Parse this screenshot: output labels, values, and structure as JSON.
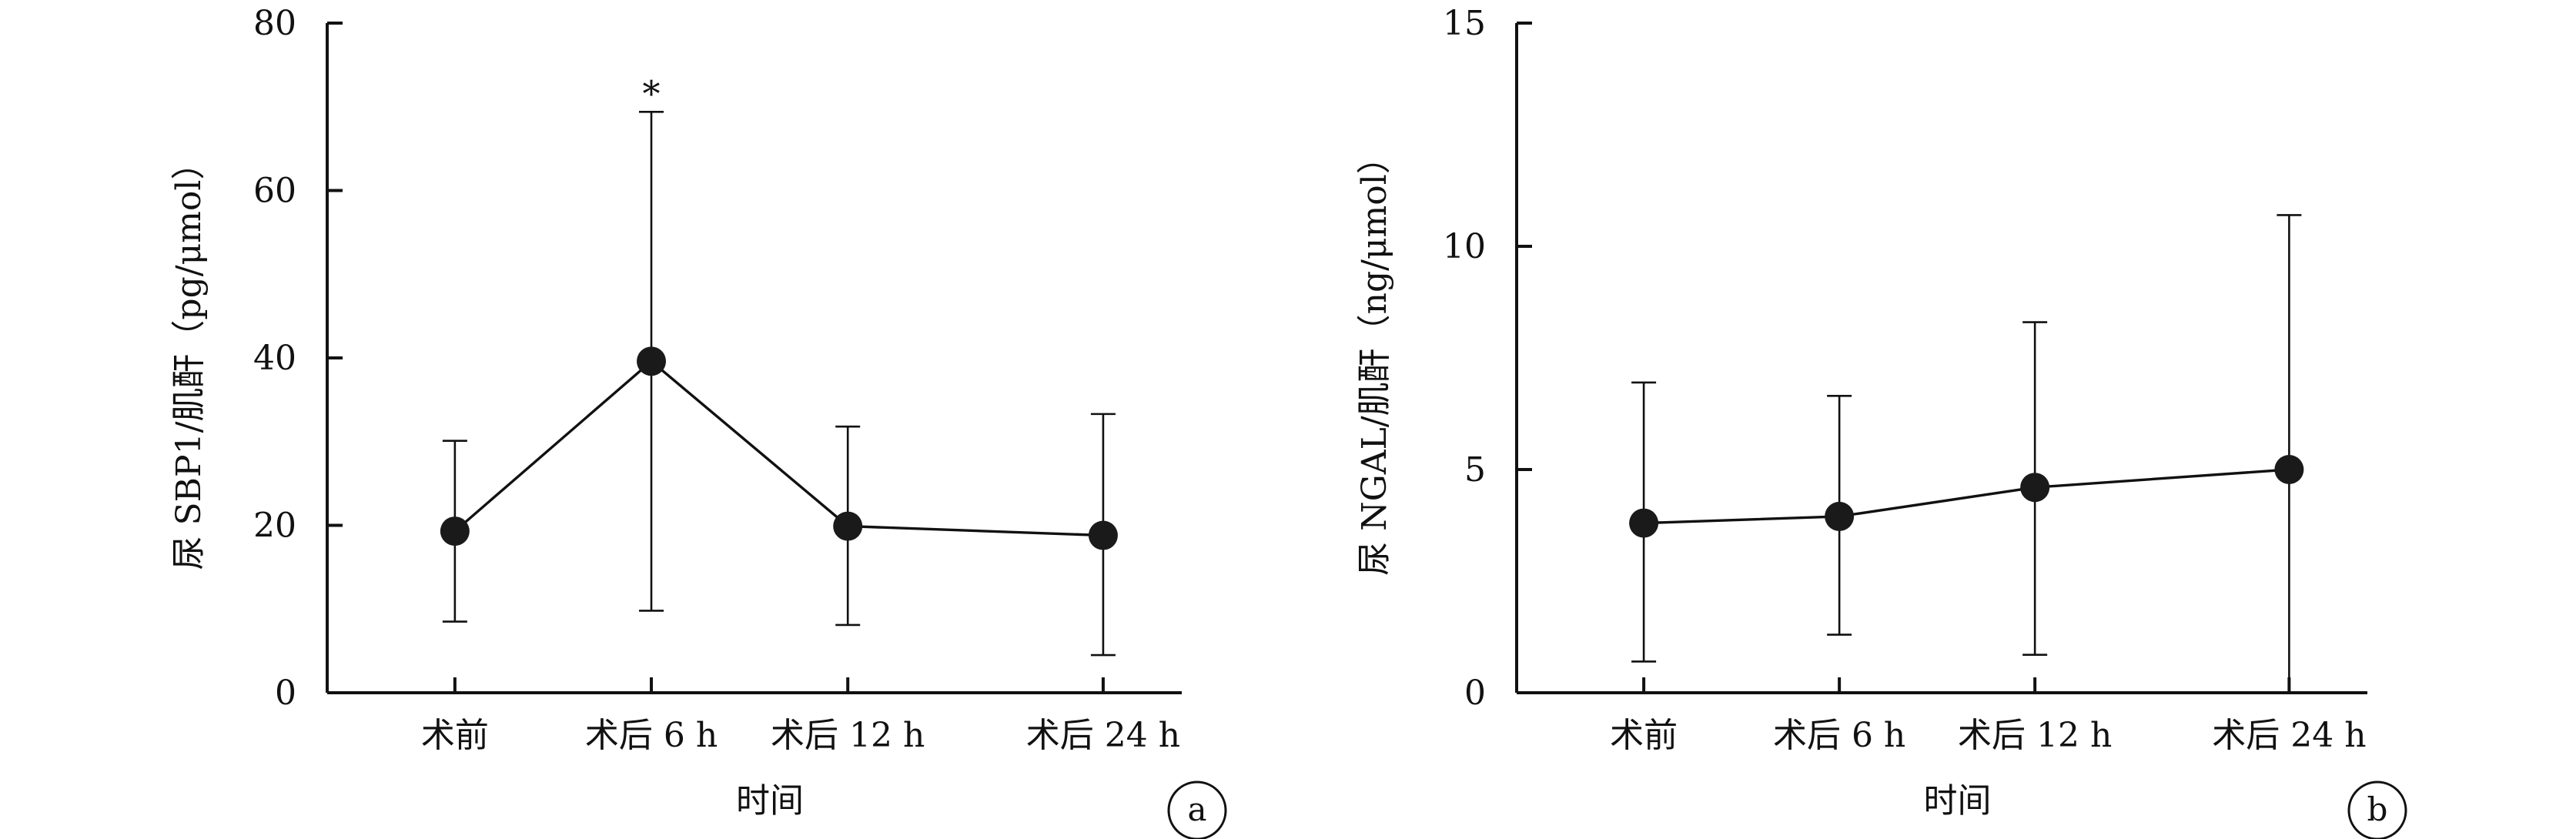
{
  "chart_data": [
    {
      "type": "line",
      "panel_label": "a",
      "ylabel": "尿 SBP1/肌酐（pg/μmol）",
      "xlabel": "时间",
      "categories": [
        "术前",
        "术后 6 h",
        "术后 12 h",
        "术后 24 h"
      ],
      "x": [
        1,
        2,
        3,
        4.3
      ],
      "xlim": [
        0.35,
        4.7
      ],
      "values": [
        19.3,
        39.6,
        19.9,
        18.8
      ],
      "error_upper": [
        30.1,
        69.4,
        31.8,
        33.3
      ],
      "error_lower": [
        8.5,
        9.8,
        8.1,
        4.5
      ],
      "ylim": [
        0,
        80
      ],
      "yticks": [
        "0",
        "20",
        "40",
        "60",
        "80"
      ],
      "annotations": [
        {
          "text": "*",
          "category_index": 1
        }
      ]
    },
    {
      "type": "line",
      "panel_label": "b",
      "ylabel": "尿 NGAL/肌酐（ng/μmol）",
      "xlabel": "时间",
      "categories": [
        "术前",
        "术后 6 h",
        "术后 12 h",
        "术后 24 h"
      ],
      "x": [
        1,
        2,
        3,
        4.3
      ],
      "xlim": [
        0.35,
        4.7
      ],
      "values": [
        3.8,
        3.95,
        4.6,
        5.0
      ],
      "error_upper": [
        6.95,
        6.65,
        8.3,
        10.7
      ],
      "error_lower": [
        0.7,
        1.3,
        0.85,
        0
      ],
      "ylim": [
        0,
        15
      ],
      "yticks": [
        "0",
        "5",
        "10",
        "15"
      ],
      "annotations": []
    }
  ]
}
